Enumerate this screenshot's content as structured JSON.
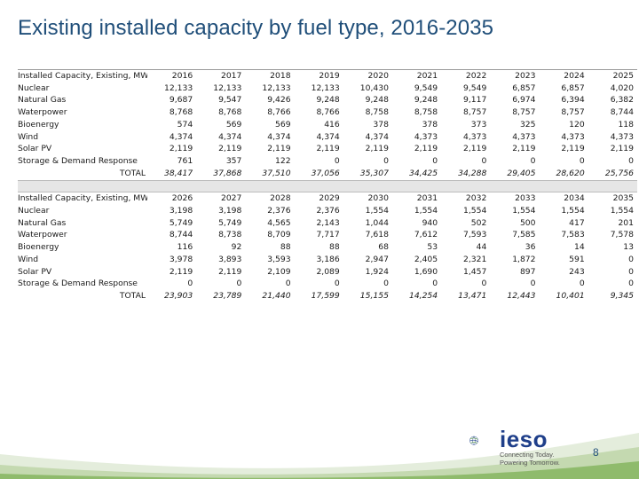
{
  "slide": {
    "title": "Existing installed capacity by fuel type, 2016-2035",
    "page_number": "8"
  },
  "table1": {
    "header_label": "Installed Capacity, Existing, MW",
    "years": [
      "2016",
      "2017",
      "2018",
      "2019",
      "2020",
      "2021",
      "2022",
      "2023",
      "2024",
      "2025"
    ],
    "rows": [
      {
        "label": "Nuclear",
        "values": [
          "12,133",
          "12,133",
          "12,133",
          "12,133",
          "10,430",
          "9,549",
          "9,549",
          "6,857",
          "6,857",
          "4,020"
        ]
      },
      {
        "label": "Natural Gas",
        "values": [
          "9,687",
          "9,547",
          "9,426",
          "9,248",
          "9,248",
          "9,248",
          "9,117",
          "6,974",
          "6,394",
          "6,382"
        ]
      },
      {
        "label": "Waterpower",
        "values": [
          "8,768",
          "8,768",
          "8,766",
          "8,766",
          "8,758",
          "8,758",
          "8,757",
          "8,757",
          "8,757",
          "8,744"
        ]
      },
      {
        "label": "Bioenergy",
        "values": [
          "574",
          "569",
          "569",
          "416",
          "378",
          "378",
          "373",
          "325",
          "120",
          "118"
        ]
      },
      {
        "label": "Wind",
        "values": [
          "4,374",
          "4,374",
          "4,374",
          "4,374",
          "4,374",
          "4,373",
          "4,373",
          "4,373",
          "4,373",
          "4,373"
        ]
      },
      {
        "label": "Solar PV",
        "values": [
          "2,119",
          "2,119",
          "2,119",
          "2,119",
          "2,119",
          "2,119",
          "2,119",
          "2,119",
          "2,119",
          "2,119"
        ]
      },
      {
        "label": "Storage & Demand Response",
        "values": [
          "761",
          "357",
          "122",
          "0",
          "0",
          "0",
          "0",
          "0",
          "0",
          "0"
        ]
      }
    ],
    "total_label": "TOTAL",
    "totals": [
      "38,417",
      "37,868",
      "37,510",
      "37,056",
      "35,307",
      "34,425",
      "34,288",
      "29,405",
      "28,620",
      "25,756"
    ]
  },
  "table2": {
    "header_label": "Installed Capacity, Existing, MW",
    "years": [
      "2026",
      "2027",
      "2028",
      "2029",
      "2030",
      "2031",
      "2032",
      "2033",
      "2034",
      "2035"
    ],
    "rows": [
      {
        "label": "Nuclear",
        "values": [
          "3,198",
          "3,198",
          "2,376",
          "2,376",
          "1,554",
          "1,554",
          "1,554",
          "1,554",
          "1,554",
          "1,554"
        ]
      },
      {
        "label": "Natural Gas",
        "values": [
          "5,749",
          "5,749",
          "4,565",
          "2,143",
          "1,044",
          "940",
          "502",
          "500",
          "417",
          "201"
        ]
      },
      {
        "label": "Waterpower",
        "values": [
          "8,744",
          "8,738",
          "8,709",
          "7,717",
          "7,618",
          "7,612",
          "7,593",
          "7,585",
          "7,583",
          "7,578"
        ]
      },
      {
        "label": "Bioenergy",
        "values": [
          "116",
          "92",
          "88",
          "88",
          "68",
          "53",
          "44",
          "36",
          "14",
          "13"
        ]
      },
      {
        "label": "Wind",
        "values": [
          "3,978",
          "3,893",
          "3,593",
          "3,186",
          "2,947",
          "2,405",
          "2,321",
          "1,872",
          "591",
          "0"
        ]
      },
      {
        "label": "Solar PV",
        "values": [
          "2,119",
          "2,119",
          "2,109",
          "2,089",
          "1,924",
          "1,690",
          "1,457",
          "897",
          "243",
          "0"
        ]
      },
      {
        "label": "Storage & Demand Response",
        "values": [
          "0",
          "0",
          "0",
          "0",
          "0",
          "0",
          "0",
          "0",
          "0",
          "0"
        ]
      }
    ],
    "total_label": "TOTAL",
    "totals": [
      "23,903",
      "23,789",
      "21,440",
      "17,599",
      "15,155",
      "14,254",
      "13,471",
      "12,443",
      "10,401",
      "9,345"
    ]
  },
  "logo": {
    "wordmark": "ieso",
    "tagline_line1": "Connecting Today.",
    "tagline_line2": "Powering Tomorrow.",
    "brand_blue": "#1f3f8a",
    "brand_green": "#6aa84f",
    "icon": "globe-icon"
  },
  "colors": {
    "title": "#1f4e79",
    "separator_band": "#e6e6e6",
    "footer_green": "#5e9c3a"
  }
}
